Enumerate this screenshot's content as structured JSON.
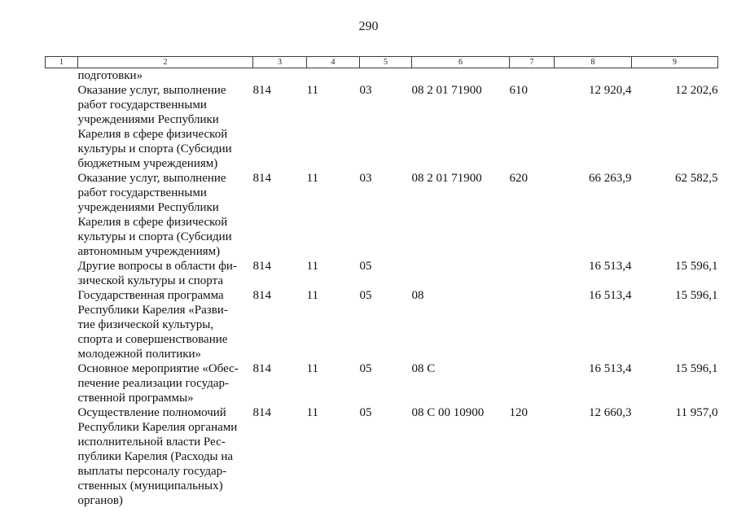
{
  "page": {
    "number": "290"
  },
  "table": {
    "header": [
      "1",
      "2",
      "3",
      "4",
      "5",
      "6",
      "7",
      "8",
      "9"
    ],
    "rows": [
      {
        "description_lines": [
          "подготовки»"
        ],
        "grbs": "",
        "razdel": "",
        "podrazdel": "",
        "target_article": "",
        "expense_type": "",
        "amount_1": "",
        "amount_2": ""
      },
      {
        "description_lines": [
          "Оказание услуг, выполнение",
          "работ государственными",
          "учреждениями Республики",
          "Карелия в сфере физической",
          "культуры и спорта (Субсидии",
          "бюджетным учреждениям)"
        ],
        "grbs": "814",
        "razdel": "11",
        "podrazdel": "03",
        "target_article": "08 2 01 71900",
        "expense_type": "610",
        "amount_1": "12 920,4",
        "amount_2": "12 202,6"
      },
      {
        "description_lines": [
          "Оказание услуг, выполнение",
          "работ государственными",
          "учреждениями Республики",
          "Карелия в сфере физической",
          "культуры и спорта (Субсидии",
          "автономным учреждениям)"
        ],
        "grbs": "814",
        "razdel": "11",
        "podrazdel": "03",
        "target_article": "08 2 01 71900",
        "expense_type": "620",
        "amount_1": "66 263,9",
        "amount_2": "62 582,5"
      },
      {
        "description_lines": [
          "Другие вопросы в области фи-",
          "зической культуры и спорта"
        ],
        "grbs": "814",
        "razdel": "11",
        "podrazdel": "05",
        "target_article": "",
        "expense_type": "",
        "amount_1": "16 513,4",
        "amount_2": "15 596,1"
      },
      {
        "description_lines": [
          "Государственная программа",
          "Республики Карелия «Разви-",
          "тие физической культуры,",
          "спорта и совершенствование",
          "молодежной политики»"
        ],
        "grbs": "814",
        "razdel": "11",
        "podrazdel": "05",
        "target_article": "08",
        "expense_type": "",
        "amount_1": "16 513,4",
        "amount_2": "15 596,1"
      },
      {
        "description_lines": [
          "Основное мероприятие «Обес-",
          "печение реализации государ-",
          "ственной программы»"
        ],
        "grbs": "814",
        "razdel": "11",
        "podrazdel": "05",
        "target_article": "08 С",
        "expense_type": "",
        "amount_1": "16 513,4",
        "amount_2": "15 596,1"
      },
      {
        "description_lines": [
          "Осуществление полномочий",
          "Республики Карелия органами",
          "исполнительной власти Рес-",
          "публики Карелия (Расходы на",
          "выплаты персоналу государ-",
          "ственных (муниципальных)",
          "органов)"
        ],
        "grbs": "814",
        "razdel": "11",
        "podrazdel": "05",
        "target_article": "08 С 00 10900",
        "expense_type": "120",
        "amount_1": "12 660,3",
        "amount_2": "11 957,0"
      }
    ]
  }
}
